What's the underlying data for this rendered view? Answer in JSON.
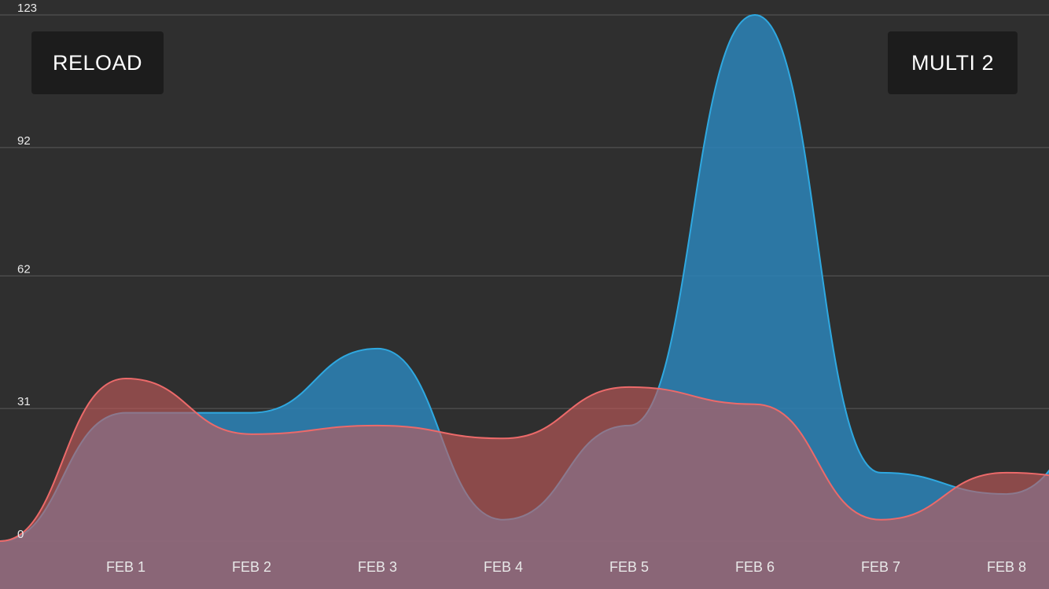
{
  "buttons": {
    "reload_label": "RELOAD",
    "multi_label": "MULTI 2"
  },
  "colors": {
    "background": "#2f2f2f",
    "button_bg": "#1c1c1c",
    "blue_stroke": "#2fa8e0",
    "blue_fill": "#2c84b8",
    "red_stroke": "#ec6a6a",
    "red_fill": "#c55c5c",
    "grid": "#5a5a5a"
  },
  "chart_data": {
    "type": "area",
    "smooth": true,
    "x": [
      "",
      "FEB 1",
      "FEB 2",
      "FEB 3",
      "FEB 4",
      "FEB 5",
      "FEB 6",
      "FEB 7",
      "FEB 8",
      ""
    ],
    "y_ticks": [
      0,
      31,
      62,
      92,
      123
    ],
    "ylim": [
      0,
      123
    ],
    "grid": true,
    "series": [
      {
        "color": "#2fa8e0",
        "values": [
          0,
          30,
          30,
          45,
          5,
          27,
          123,
          16,
          11,
          37
        ]
      },
      {
        "color": "#ec6a6a",
        "values": [
          0,
          38,
          25,
          27,
          24,
          36,
          32,
          5,
          16,
          13
        ]
      }
    ]
  }
}
